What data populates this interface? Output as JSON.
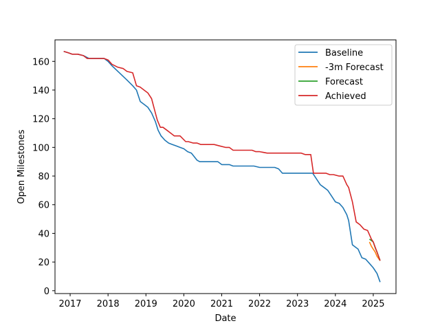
{
  "chart_data": {
    "type": "line",
    "title": "",
    "xlabel": "Date",
    "ylabel": "Open Milestones",
    "xlim": [
      2016.6,
      2025.6
    ],
    "ylim": [
      -2,
      175
    ],
    "xticks": [
      2017,
      2018,
      2019,
      2020,
      2021,
      2022,
      2023,
      2024,
      2025
    ],
    "yticks": [
      0,
      20,
      40,
      60,
      80,
      100,
      120,
      140,
      160
    ],
    "grid": false,
    "legend_position": "top-right",
    "series": [
      {
        "name": "Baseline",
        "color": "#1f77b4",
        "x": [
          2016.83,
          2016.95,
          2017.05,
          2017.2,
          2017.35,
          2017.5,
          2017.7,
          2017.9,
          2018.0,
          2018.1,
          2018.3,
          2018.5,
          2018.65,
          2018.75,
          2018.85,
          2018.95,
          2019.05,
          2019.15,
          2019.25,
          2019.32,
          2019.4,
          2019.5,
          2019.6,
          2019.7,
          2019.8,
          2019.9,
          2020.0,
          2020.1,
          2020.2,
          2020.35,
          2020.42,
          2020.5,
          2020.7,
          2020.9,
          2021.0,
          2021.2,
          2021.3,
          2021.5,
          2021.7,
          2021.85,
          2022.0,
          2022.2,
          2022.3,
          2022.4,
          2022.5,
          2022.6,
          2022.8,
          2023.0,
          2023.2,
          2023.3,
          2023.4,
          2023.6,
          2023.7,
          2023.8,
          2023.9,
          2024.0,
          2024.1,
          2024.2,
          2024.3,
          2024.35,
          2024.45,
          2024.6,
          2024.7,
          2024.8,
          2024.9,
          2025.0,
          2025.1,
          2025.18
        ],
        "values": [
          167,
          166,
          165,
          165,
          164,
          162,
          162,
          162,
          160,
          157,
          152,
          147,
          143,
          140,
          132,
          130,
          128,
          124,
          118,
          112,
          108,
          105,
          103,
          102,
          101,
          100,
          99,
          97,
          96,
          91,
          90,
          90,
          90,
          90,
          88,
          88,
          87,
          87,
          87,
          87,
          86,
          86,
          86,
          86,
          85,
          82,
          82,
          82,
          82,
          82,
          82,
          74,
          72,
          70,
          66,
          62,
          61,
          58,
          53,
          49,
          32,
          29,
          23,
          22,
          19,
          16,
          12,
          6
        ]
      },
      {
        "name": "-3m Forecast",
        "color": "#ff7f0e",
        "x": [
          2024.9,
          2024.95,
          2025.0,
          2025.05,
          2025.1,
          2025.18
        ],
        "values": [
          34,
          31,
          29,
          27,
          24,
          21
        ]
      },
      {
        "name": "Forecast",
        "color": "#2ca02c",
        "x": [
          2024.9,
          2025.0,
          2025.05,
          2025.1,
          2025.18
        ],
        "values": [
          36,
          34,
          30,
          27,
          21
        ]
      },
      {
        "name": "Achieved",
        "color": "#d62728",
        "x": [
          2016.83,
          2016.95,
          2017.05,
          2017.2,
          2017.35,
          2017.45,
          2017.5,
          2017.7,
          2017.9,
          2018.0,
          2018.1,
          2018.25,
          2018.4,
          2018.5,
          2018.65,
          2018.75,
          2018.85,
          2018.95,
          2019.05,
          2019.15,
          2019.25,
          2019.3,
          2019.38,
          2019.45,
          2019.55,
          2019.65,
          2019.75,
          2019.85,
          2019.9,
          2020.05,
          2020.12,
          2020.25,
          2020.35,
          2020.45,
          2020.6,
          2020.8,
          2020.95,
          2021.1,
          2021.2,
          2021.3,
          2021.5,
          2021.7,
          2021.8,
          2021.9,
          2022.0,
          2022.2,
          2022.5,
          2022.7,
          2022.9,
          2023.1,
          2023.2,
          2023.35,
          2023.42,
          2023.6,
          2023.75,
          2023.85,
          2023.95,
          2024.1,
          2024.2,
          2024.3,
          2024.35,
          2024.45,
          2024.55,
          2024.65,
          2024.75,
          2024.85,
          2024.95,
          2025.0,
          2025.18
        ],
        "values": [
          167,
          166,
          165,
          165,
          164,
          162,
          162,
          162,
          162,
          161,
          158,
          156,
          155,
          153,
          152,
          143,
          142,
          140,
          138,
          134,
          124,
          119,
          114,
          114,
          112,
          110,
          108,
          108,
          108,
          104,
          104,
          103,
          103,
          102,
          102,
          102,
          101,
          100,
          100,
          98,
          98,
          98,
          98,
          97,
          97,
          96,
          96,
          96,
          96,
          96,
          95,
          95,
          82,
          82,
          82,
          81,
          81,
          80,
          80,
          74,
          72,
          62,
          48,
          46,
          43,
          42,
          36,
          34,
          21
        ]
      }
    ]
  }
}
